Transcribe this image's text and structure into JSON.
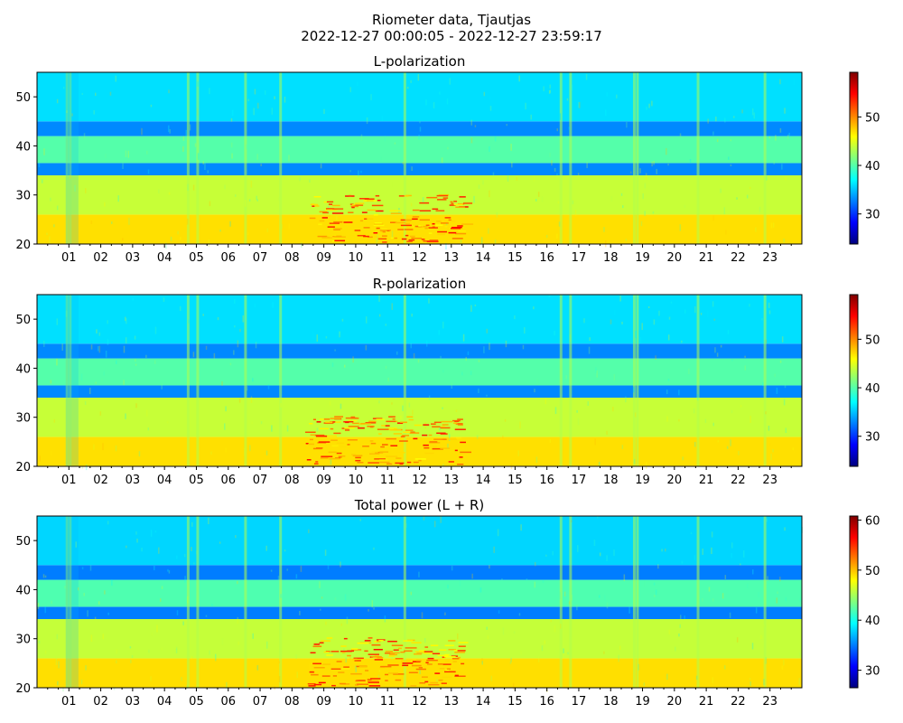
{
  "figure": {
    "title_line1": "Riometer data, Tjautjas",
    "title_line2": "2022-12-27 00:00:05 - 2022-12-27 23:59:17"
  },
  "colormap": [
    "#00007f",
    "#0000ff",
    "#007fff",
    "#00ffff",
    "#7fff7f",
    "#ffff00",
    "#ff7f00",
    "#ff0000",
    "#7f0000"
  ],
  "chart_data": [
    {
      "type": "heatmap",
      "title": "L-polarization",
      "xlabel": "",
      "ylabel": "",
      "x_unit": "hour of day",
      "x_range": [
        0,
        24
      ],
      "x_tick_labels": [
        "01",
        "02",
        "03",
        "04",
        "05",
        "06",
        "07",
        "08",
        "09",
        "10",
        "11",
        "12",
        "13",
        "14",
        "15",
        "16",
        "17",
        "18",
        "19",
        "20",
        "21",
        "22",
        "23"
      ],
      "ylim": [
        20,
        55
      ],
      "y_ticks": [
        20,
        30,
        40,
        50
      ],
      "colorbar": {
        "range": [
          23.8,
          59.2
        ],
        "ticks": [
          30,
          40,
          50
        ]
      },
      "dominant_bands": [
        {
          "y_range": [
            20,
            26
          ],
          "level": 47
        },
        {
          "y_range": [
            26,
            34
          ],
          "level": 44
        },
        {
          "y_range": [
            34,
            36.5
          ],
          "level": 33
        },
        {
          "y_range": [
            36.5,
            42
          ],
          "level": 40
        },
        {
          "y_range": [
            42,
            45
          ],
          "level": 33
        },
        {
          "y_range": [
            45,
            55
          ],
          "level": 36
        }
      ]
    },
    {
      "type": "heatmap",
      "title": "R-polarization",
      "xlabel": "",
      "ylabel": "",
      "x_unit": "hour of day",
      "x_range": [
        0,
        24
      ],
      "x_tick_labels": [
        "01",
        "02",
        "03",
        "04",
        "05",
        "06",
        "07",
        "08",
        "09",
        "10",
        "11",
        "12",
        "13",
        "14",
        "15",
        "16",
        "17",
        "18",
        "19",
        "20",
        "21",
        "22",
        "23"
      ],
      "ylim": [
        20,
        55
      ],
      "y_ticks": [
        20,
        30,
        40,
        50
      ],
      "colorbar": {
        "range": [
          23.8,
          59.2
        ],
        "ticks": [
          30,
          40,
          50
        ]
      },
      "dominant_bands": [
        {
          "y_range": [
            20,
            26
          ],
          "level": 47
        },
        {
          "y_range": [
            26,
            34
          ],
          "level": 44
        },
        {
          "y_range": [
            34,
            36.5
          ],
          "level": 33
        },
        {
          "y_range": [
            36.5,
            42
          ],
          "level": 40
        },
        {
          "y_range": [
            42,
            45
          ],
          "level": 33
        },
        {
          "y_range": [
            45,
            55
          ],
          "level": 36
        }
      ]
    },
    {
      "type": "heatmap",
      "title": "Total power (L + R)",
      "xlabel": "",
      "ylabel": "",
      "x_unit": "hour of day",
      "x_range": [
        0,
        24
      ],
      "x_tick_labels": [
        "01",
        "02",
        "03",
        "04",
        "05",
        "06",
        "07",
        "08",
        "09",
        "10",
        "11",
        "12",
        "13",
        "14",
        "15",
        "16",
        "17",
        "18",
        "19",
        "20",
        "21",
        "22",
        "23"
      ],
      "ylim": [
        20,
        55
      ],
      "y_ticks": [
        20,
        30,
        40,
        50
      ],
      "colorbar": {
        "range": [
          26.5,
          60.8
        ],
        "ticks": [
          30,
          40,
          50,
          60
        ]
      },
      "dominant_bands": [
        {
          "y_range": [
            20,
            26
          ],
          "level": 49
        },
        {
          "y_range": [
            26,
            34
          ],
          "level": 46
        },
        {
          "y_range": [
            34,
            36.5
          ],
          "level": 35
        },
        {
          "y_range": [
            36.5,
            42
          ],
          "level": 42
        },
        {
          "y_range": [
            42,
            45
          ],
          "level": 35
        },
        {
          "y_range": [
            45,
            55
          ],
          "level": 38
        }
      ]
    }
  ]
}
